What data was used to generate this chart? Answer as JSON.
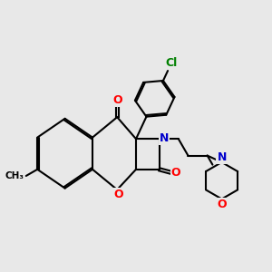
{
  "background_color": "#e8e8e8",
  "bond_color": "#000000",
  "bond_width": 1.5,
  "atom_colors": {
    "O": "#ff0000",
    "N": "#0000cc",
    "Cl": "#008000",
    "C": "#000000"
  },
  "font_size": 9,
  "figsize": [
    3.0,
    3.0
  ],
  "dpi": 100
}
